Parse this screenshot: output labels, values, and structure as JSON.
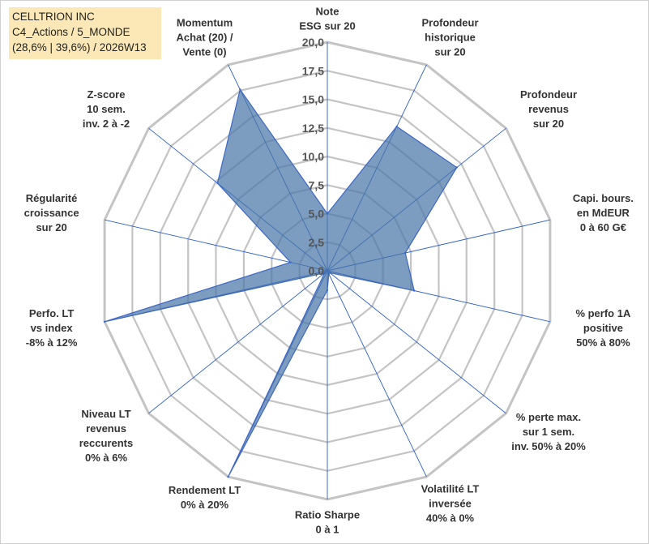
{
  "header": {
    "line1": "CELLTRION INC",
    "line2": "C4_Actions / 5_MONDE",
    "line3": "(28,6% | 39,6%) / 2026W13"
  },
  "colors": {
    "fill": "#4a76a8",
    "fill_opacity": 0.72,
    "stroke": "#3d67c4",
    "grid": "#c4c4c4",
    "spoke": "#2b5fc8",
    "title_bg": "#fbe8b6"
  },
  "chart_data": {
    "type": "radar",
    "title": "CELLTRION INC",
    "rmin": 0,
    "rmax": 20,
    "ticks": [
      "0,0",
      "2,5",
      "5,0",
      "7,5",
      "10,0",
      "12,5",
      "15,0",
      "17,5",
      "20,0"
    ],
    "axes": [
      {
        "lines": [
          "Note",
          "ESG sur 20"
        ],
        "value": 5.0
      },
      {
        "lines": [
          "Profondeur",
          "historique",
          "sur 20"
        ],
        "value": 14.0
      },
      {
        "lines": [
          "Profondeur",
          "revenus",
          "sur 20"
        ],
        "value": 14.5
      },
      {
        "lines": [
          "Capi. bours.",
          "en MdEUR",
          "0 à 60 G€"
        ],
        "value": 7.0
      },
      {
        "lines": [
          "% perfo 1A",
          "positive",
          "50% à 80%"
        ],
        "value": 7.8
      },
      {
        "lines": [
          "% perte max.",
          "sur 1 sem.",
          "inv. 50% à 20%"
        ],
        "value": 0.3
      },
      {
        "lines": [
          "Volatilité LT",
          "inversée",
          "40% à 0%"
        ],
        "value": 0.3
      },
      {
        "lines": [
          "Ratio Sharpe",
          "0 à 1"
        ],
        "value": 1.7
      },
      {
        "lines": [
          "Rendement LT",
          "0% à 20%"
        ],
        "value": 20.0
      },
      {
        "lines": [
          "Niveau LT",
          "revenus",
          "reccurents",
          "0% à 6%"
        ],
        "value": 0.3
      },
      {
        "lines": [
          "Perfo. LT",
          "vs index",
          "-8% à 12%"
        ],
        "value": 20.0
      },
      {
        "lines": [
          "Régularité",
          "croissance",
          "sur 20"
        ],
        "value": 3.3
      },
      {
        "lines": [
          "Z-score",
          "10 sem.",
          "inv. 2 à -2"
        ],
        "value": 12.3
      },
      {
        "lines": [
          "Momentum",
          "Achat (20) /",
          "Vente (0)"
        ],
        "value": 17.6
      }
    ]
  }
}
